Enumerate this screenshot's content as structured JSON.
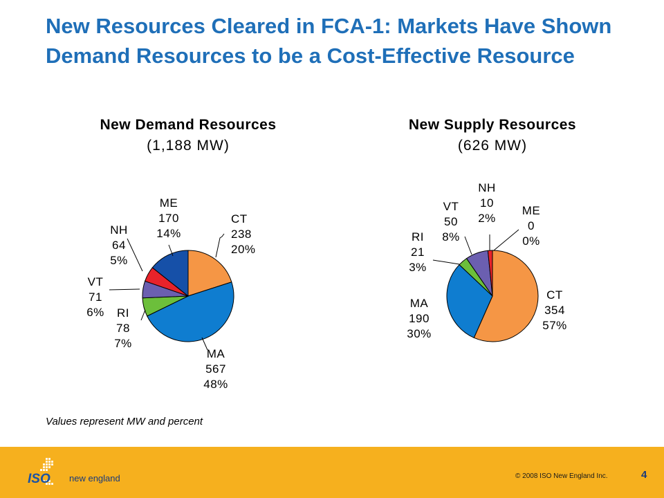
{
  "slide": {
    "title": "New Resources Cleared in FCA-1: Markets Have Shown Demand Resources to be a Cost-Effective Resource",
    "note": "Values represent MW and percent"
  },
  "footer": {
    "logo_iso": "ISO",
    "logo_tagline": "new england",
    "copyright": "© 2008 ISO New England Inc.",
    "page_number": "4"
  },
  "colors": {
    "title": "#1f6fb8",
    "footer": "#f6b01e",
    "CT": "#f59645",
    "MA": "#0f7dd0",
    "RI": "#6cbf3b",
    "VT": "#6b5fb0",
    "NH": "#e8232a",
    "ME": "#1650a8"
  },
  "chart_data": [
    {
      "type": "pie",
      "title": "New Demand Resources",
      "subtitle": "(1,188 MW)",
      "slices": [
        {
          "name": "CT",
          "value": 238,
          "percent": "20%",
          "label": [
            "CT",
            "238",
            "20%"
          ]
        },
        {
          "name": "MA",
          "value": 567,
          "percent": "48%",
          "label": [
            "MA",
            "567",
            "48%"
          ]
        },
        {
          "name": "RI",
          "value": 78,
          "percent": "7%",
          "label": [
            "RI",
            "78",
            "7%"
          ]
        },
        {
          "name": "VT",
          "value": 71,
          "percent": "6%",
          "label": [
            "VT",
            "71",
            "6%"
          ]
        },
        {
          "name": "NH",
          "value": 64,
          "percent": "5%",
          "label": [
            "NH",
            "64",
            "5%"
          ]
        },
        {
          "name": "ME",
          "value": 170,
          "percent": "14%",
          "label": [
            "ME",
            "170",
            "14%"
          ]
        }
      ]
    },
    {
      "type": "pie",
      "title": "New Supply Resources",
      "subtitle": "(626 MW)",
      "slices": [
        {
          "name": "CT",
          "value": 354,
          "percent": "57%",
          "label": [
            "CT",
            "354",
            "57%"
          ]
        },
        {
          "name": "MA",
          "value": 190,
          "percent": "30%",
          "label": [
            "MA",
            "190",
            "30%"
          ]
        },
        {
          "name": "RI",
          "value": 21,
          "percent": "3%",
          "label": [
            "RI",
            "21",
            "3%"
          ]
        },
        {
          "name": "VT",
          "value": 50,
          "percent": "8%",
          "label": [
            "VT",
            "50",
            "8%"
          ]
        },
        {
          "name": "NH",
          "value": 10,
          "percent": "2%",
          "label": [
            "NH",
            "10",
            "2%"
          ]
        },
        {
          "name": "ME",
          "value": 0,
          "percent": "0%",
          "label": [
            "ME",
            "0",
            "0%"
          ]
        }
      ]
    }
  ]
}
